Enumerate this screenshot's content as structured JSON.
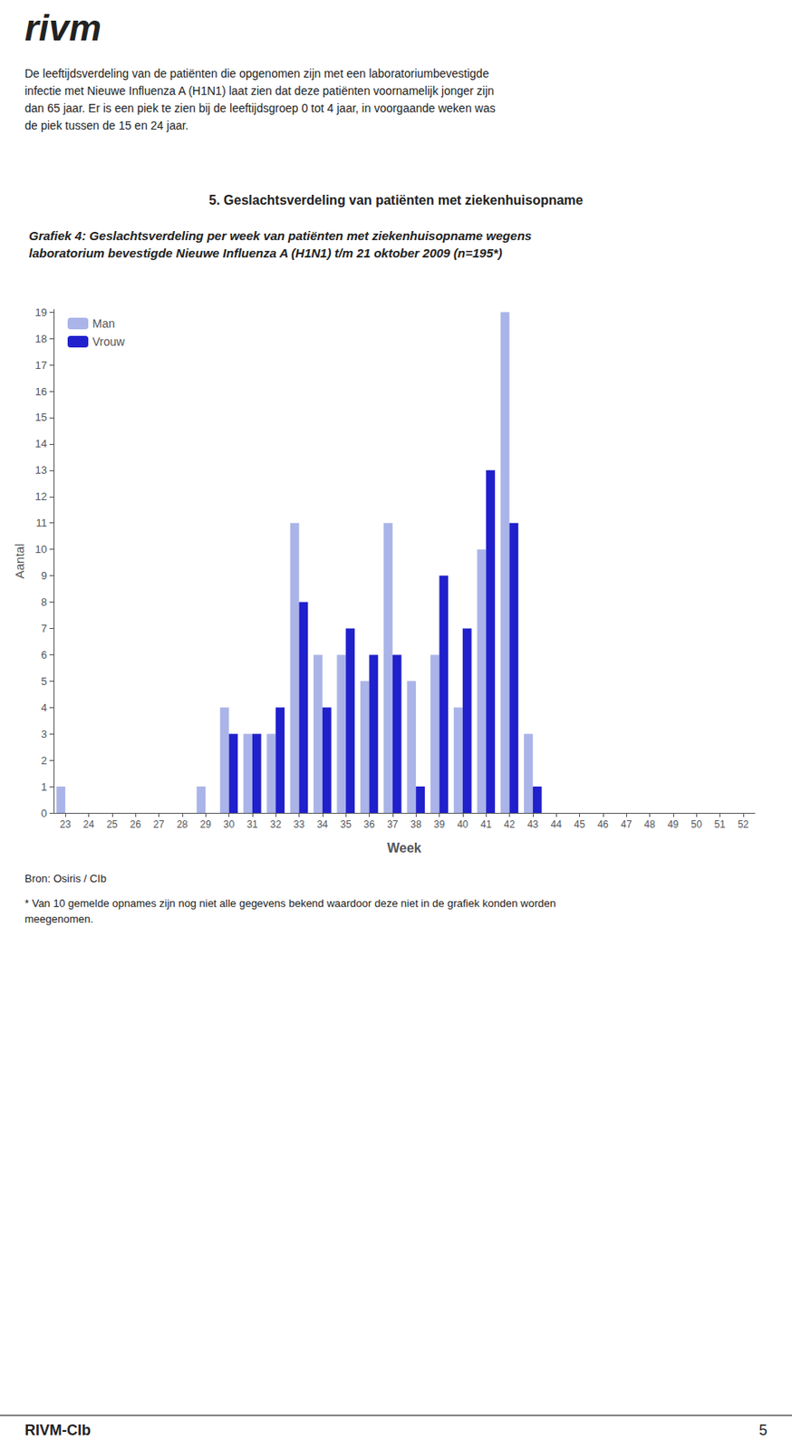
{
  "chart_data": {
    "type": "bar",
    "title": "Grafiek 4: Geslachtsverdeling per week van patiënten met ziekenhuisopname wegens\nlaboratorium bevestigde Nieuwe Influenza A (H1N1) t/m 21 oktober 2009 (n=195*)",
    "xlabel": "Week",
    "ylabel": "Aantal",
    "categories": [
      23,
      24,
      25,
      26,
      27,
      28,
      29,
      30,
      31,
      32,
      33,
      34,
      35,
      36,
      37,
      38,
      39,
      40,
      41,
      42,
      43,
      44,
      45,
      46,
      47,
      48,
      49,
      50,
      51,
      52
    ],
    "series": [
      {
        "name": "Man",
        "color": "#aab4e8",
        "values": [
          1,
          0,
          0,
          0,
          0,
          0,
          1,
          4,
          3,
          3,
          11,
          6,
          6,
          5,
          11,
          5,
          6,
          4,
          10,
          19,
          3,
          0,
          0,
          0,
          0,
          0,
          0,
          0,
          0,
          0
        ]
      },
      {
        "name": "Vrouw",
        "color": "#2020cc",
        "values": [
          0,
          0,
          0,
          0,
          0,
          0,
          0,
          3,
          3,
          4,
          8,
          4,
          7,
          6,
          6,
          1,
          9,
          7,
          13,
          11,
          1,
          0,
          0,
          0,
          0,
          0,
          0,
          0,
          0,
          0
        ]
      }
    ],
    "ylim": [
      0,
      19.1
    ],
    "yticks": [
      0,
      1,
      2,
      3,
      4,
      5,
      6,
      7,
      8,
      9,
      10,
      11,
      12,
      13,
      14,
      15,
      16,
      17,
      18,
      19
    ],
    "grid": false,
    "legend": "upper left",
    "annotations": [
      "rivm",
      "De leeftijdsverdeling van de patiënten die opgenomen zijn met een laboratoriumbevestigde\ninfectie met Nieuwe Influenza A (H1N1) laat zien dat deze patiënten voornamelijk jonger zijn\ndan 65 jaar. Er is een piek te zien bij de leeftijdsgroep 0 tot 4 jaar, in voorgaande weken was\nde piek tussen de 15 en 24 jaar.",
      "5. Geslachtsverdeling van patiënten met ziekenhuisopname",
      "Bron: Osiris / CIb",
      "* Van 10 gemelde opnames zijn nog niet alle gegevens bekend waardoor deze niet in de grafiek konden worden\nmeegenomen.",
      "RIVM-CIb",
      "5"
    ]
  }
}
